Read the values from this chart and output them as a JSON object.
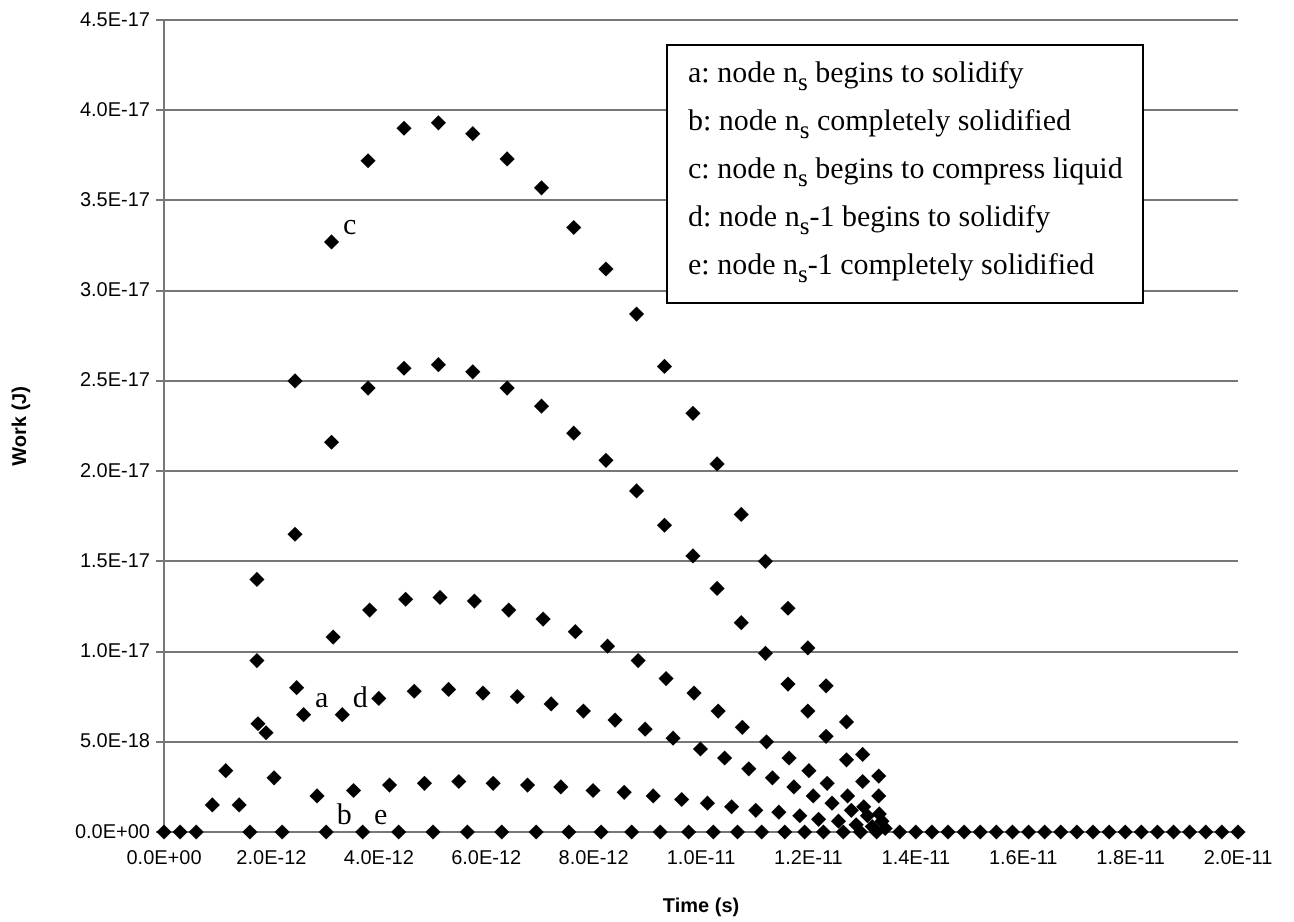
{
  "chart_data": {
    "type": "scatter",
    "xlabel": "Time (s)",
    "ylabel": "Work (J)",
    "x": [
      0,
      3e-13,
      6e-13,
      9e-13,
      1.15e-12,
      1.4e-12,
      1.6e-12,
      1.73e-12,
      1.73e-12,
      1.75e-12,
      1.9e-12,
      2.05e-12,
      2.2e-12,
      2.44e-12,
      2.44e-12,
      2.47e-12,
      2.6e-12,
      2.85e-12,
      3.02e-12,
      3.12e-12,
      3.12e-12,
      3.15e-12,
      3.32e-12,
      3.53e-12,
      3.7e-12,
      3.8e-12,
      3.8e-12,
      3.83e-12,
      4e-12,
      4.2e-12,
      4.37e-12,
      4.47e-12,
      4.47e-12,
      4.5e-12,
      4.66e-12,
      4.85e-12,
      5.01e-12,
      5.11e-12,
      5.11e-12,
      5.14e-12,
      5.3e-12,
      5.49e-12,
      5.65e-12,
      5.75e-12,
      5.75e-12,
      5.78e-12,
      5.94e-12,
      6.13e-12,
      6.29e-12,
      6.39e-12,
      6.39e-12,
      6.42e-12,
      6.58e-12,
      6.77e-12,
      6.93e-12,
      7.03e-12,
      7.03e-12,
      7.06e-12,
      7.21e-12,
      7.39e-12,
      7.54e-12,
      7.63e-12,
      7.63e-12,
      7.66e-12,
      7.81e-12,
      7.99e-12,
      8.14e-12,
      8.23e-12,
      8.23e-12,
      8.26e-12,
      8.4e-12,
      8.57e-12,
      8.71e-12,
      8.8e-12,
      8.8e-12,
      8.83e-12,
      8.96e-12,
      9.11e-12,
      9.24e-12,
      9.32e-12,
      9.32e-12,
      9.35e-12,
      9.48e-12,
      9.64e-12,
      9.77e-12,
      9.85e-12,
      9.85e-12,
      9.87e-12,
      9.99e-12,
      1.012e-11,
      1.023e-11,
      1.03e-11,
      1.03e-11,
      1.032e-11,
      1.044e-11,
      1.057e-11,
      1.068e-11,
      1.075e-11,
      1.075e-11,
      1.077e-11,
      1.089e-11,
      1.102e-11,
      1.113e-11,
      1.12e-11,
      1.12e-11,
      1.122e-11,
      1.133e-11,
      1.145e-11,
      1.156e-11,
      1.162e-11,
      1.162e-11,
      1.164e-11,
      1.173e-11,
      1.184e-11,
      1.193e-11,
      1.199e-11,
      1.199e-11,
      1.201e-11,
      1.209e-11,
      1.219e-11,
      1.228e-11,
      1.233e-11,
      1.233e-11,
      1.235e-11,
      1.244e-11,
      1.256e-11,
      1.265e-11,
      1.271e-11,
      1.271e-11,
      1.273e-11,
      1.28e-11,
      1.289e-11,
      1.297e-11,
      1.301e-11,
      1.301e-11,
      1.303e-11,
      1.31e-11,
      1.319e-11,
      1.327e-11,
      1.331e-11,
      1.331e-11,
      1.332e-11,
      1.337e-11,
      1.343e-11,
      1.37e-11,
      1.4e-11,
      1.43e-11,
      1.46e-11,
      1.49e-11,
      1.52e-11,
      1.55e-11,
      1.58e-11,
      1.61e-11,
      1.64e-11,
      1.67e-11,
      1.7e-11,
      1.73e-11,
      1.76e-11,
      1.79e-11,
      1.82e-11,
      1.85e-11,
      1.88e-11,
      1.91e-11,
      1.94e-11,
      1.97e-11,
      2e-11
    ],
    "series": [
      {
        "color": "#000000",
        "values": [
          0,
          0,
          0,
          1.5e-18,
          3.4e-18,
          1.5e-18,
          0,
          1.4e-17,
          9.5e-18,
          6e-18,
          5.5e-18,
          3e-18,
          0,
          2.5e-17,
          1.65e-17,
          8e-18,
          6.5e-18,
          2e-18,
          0,
          3.27e-17,
          2.16e-17,
          1.08e-17,
          6.5e-18,
          2.3e-18,
          0,
          3.72e-17,
          2.46e-17,
          1.23e-17,
          7.4e-18,
          2.6e-18,
          0,
          3.9e-17,
          2.57e-17,
          1.29e-17,
          7.8e-18,
          2.7e-18,
          0,
          3.93e-17,
          2.59e-17,
          1.3e-17,
          7.9e-18,
          2.8e-18,
          0,
          3.87e-17,
          2.55e-17,
          1.28e-17,
          7.7e-18,
          2.7e-18,
          0,
          3.73e-17,
          2.46e-17,
          1.23e-17,
          7.5e-18,
          2.6e-18,
          0,
          3.57e-17,
          2.36e-17,
          1.18e-17,
          7.1e-18,
          2.5e-18,
          0,
          3.35e-17,
          2.21e-17,
          1.11e-17,
          6.7e-18,
          2.3e-18,
          0,
          3.12e-17,
          2.06e-17,
          1.03e-17,
          6.2e-18,
          2.2e-18,
          0,
          2.87e-17,
          1.89e-17,
          9.5e-18,
          5.7e-18,
          2e-18,
          0,
          2.58e-17,
          1.7e-17,
          8.5e-18,
          5.2e-18,
          1.8e-18,
          0,
          2.32e-17,
          1.53e-17,
          7.7e-18,
          4.6e-18,
          1.6e-18,
          0,
          2.04e-17,
          1.35e-17,
          6.7e-18,
          4.1e-18,
          1.4e-18,
          0,
          1.76e-17,
          1.16e-17,
          5.8e-18,
          3.5e-18,
          1.2e-18,
          0,
          1.5e-17,
          9.9e-18,
          5e-18,
          3e-18,
          1.1e-18,
          0,
          1.24e-17,
          8.2e-18,
          4.1e-18,
          2.5e-18,
          9e-19,
          0,
          1.02e-17,
          6.7e-18,
          3.4e-18,
          2e-18,
          7e-19,
          0,
          8.1e-18,
          5.3e-18,
          2.7e-18,
          1.6e-18,
          6e-19,
          0,
          6.1e-18,
          4e-18,
          2e-18,
          1.2e-18,
          4e-19,
          0,
          4.3e-18,
          2.8e-18,
          1.4e-18,
          9e-19,
          3e-19,
          0,
          3.1e-18,
          2e-18,
          1e-18,
          6e-19,
          2e-19,
          0,
          0,
          0,
          0,
          0,
          0,
          0,
          0,
          0,
          0,
          0,
          0,
          0,
          0,
          0,
          0,
          0,
          0,
          0,
          0,
          0,
          0
        ]
      }
    ],
    "xlim": [
      0,
      2e-11
    ],
    "xticks": [
      {
        "value": 0,
        "label": "0.0E+00"
      },
      {
        "value": 2e-12,
        "label": "2.0E-12"
      },
      {
        "value": 4e-12,
        "label": "4.0E-12"
      },
      {
        "value": 6e-12,
        "label": "6.0E-12"
      },
      {
        "value": 8e-12,
        "label": "8.0E-12"
      },
      {
        "value": 1e-11,
        "label": "1.0E-11"
      },
      {
        "value": 1.2e-11,
        "label": "1.2E-11"
      },
      {
        "value": 1.4e-11,
        "label": "1.4E-11"
      },
      {
        "value": 1.6e-11,
        "label": "1.6E-11"
      },
      {
        "value": 1.8e-11,
        "label": "1.8E-11"
      },
      {
        "value": 2e-11,
        "label": "2.0E-11"
      }
    ],
    "ylim": [
      0,
      4.5e-17
    ],
    "yticks": [
      {
        "value": 0,
        "label": "0.0E+00"
      },
      {
        "value": 5e-18,
        "label": "5.0E-18"
      },
      {
        "value": 1e-17,
        "label": "1.0E-17"
      },
      {
        "value": 1.5e-17,
        "label": "1.5E-17"
      },
      {
        "value": 2e-17,
        "label": "2.0E-17"
      },
      {
        "value": 2.5e-17,
        "label": "2.5E-17"
      },
      {
        "value": 3e-17,
        "label": "3.0E-17"
      },
      {
        "value": 3.5e-17,
        "label": "3.5E-17"
      },
      {
        "value": 4e-17,
        "label": "4.0E-17"
      },
      {
        "value": 4.5e-17,
        "label": "4.5E-17"
      }
    ],
    "grid": "y",
    "marker": "diamond",
    "annotations": [
      {
        "text": "a",
        "x": 2.6e-12,
        "y": 6.5e-18
      },
      {
        "text": "b",
        "x": 3.02e-12,
        "y": 0
      },
      {
        "text": "c",
        "x": 3.12e-12,
        "y": 3.27e-17
      },
      {
        "text": "d",
        "x": 3.32e-12,
        "y": 6.5e-18
      },
      {
        "text": "e",
        "x": 3.7e-12,
        "y": 0
      },
      "a: node n$_{s}$ begins to solidify",
      "b: node n$_{s}$ completely solidified",
      "c: node n$_{s}$ begins to compress liquid",
      "d: node n$_{s}$-1 begins to solidify",
      "e: node n$_{s}$-1 completely solidified"
    ]
  }
}
